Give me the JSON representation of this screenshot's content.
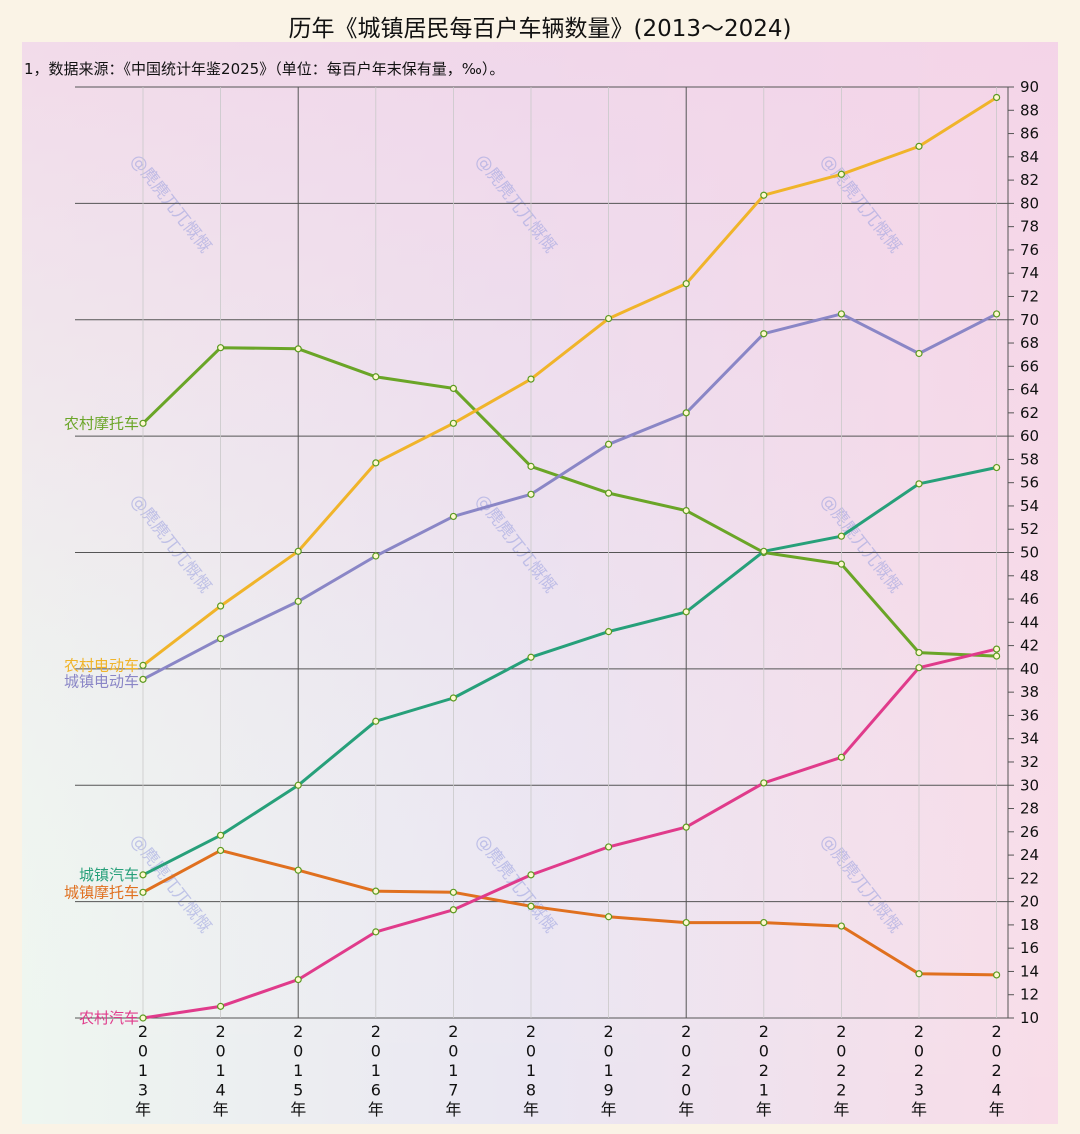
{
  "title": "历年《城镇居民每百户车辆数量》(2013～2024)",
  "subtitle": "1，数据来源：《中国统计年鉴2025》（单位：每百户年末保有量，‰）。",
  "watermark": "@麂麂兀兀慨慨",
  "chart_data": {
    "type": "line",
    "x": [
      "2013年",
      "2014年",
      "2015年",
      "2016年",
      "2017年",
      "2018年",
      "2019年",
      "2020年",
      "2021年",
      "2022年",
      "2023年",
      "2024年"
    ],
    "ylim": [
      10,
      90
    ],
    "yticks": [
      10,
      12,
      14,
      16,
      18,
      20,
      22,
      24,
      26,
      28,
      30,
      32,
      34,
      36,
      38,
      40,
      42,
      44,
      46,
      48,
      50,
      52,
      54,
      56,
      58,
      60,
      62,
      64,
      66,
      68,
      70,
      72,
      74,
      76,
      78,
      80,
      82,
      84,
      86,
      88,
      90
    ],
    "y_axis_side": "right",
    "grid": true,
    "series": [
      {
        "name": "农村摩托车",
        "color": "#6aa527",
        "values": [
          61.1,
          67.6,
          67.5,
          65.1,
          64.1,
          57.4,
          55.1,
          53.6,
          50.0,
          49.0,
          41.4,
          41.1
        ]
      },
      {
        "name": "农村电动车",
        "color": "#f0b42a",
        "values": [
          40.3,
          45.4,
          50.1,
          57.7,
          61.1,
          64.9,
          70.1,
          73.1,
          80.7,
          82.5,
          84.9,
          89.1
        ]
      },
      {
        "name": "城镇电动车",
        "color": "#8a86c6",
        "values": [
          39.1,
          42.6,
          45.8,
          49.7,
          53.1,
          55.0,
          59.3,
          62.0,
          68.8,
          70.5,
          67.1,
          70.5
        ]
      },
      {
        "name": "城镇汽车",
        "color": "#27a07a",
        "values": [
          22.3,
          25.7,
          30.0,
          35.5,
          37.5,
          41.0,
          43.2,
          44.9,
          50.1,
          51.4,
          55.9,
          57.3
        ]
      },
      {
        "name": "城镇摩托车",
        "color": "#e0701f",
        "values": [
          20.8,
          24.4,
          22.7,
          20.9,
          20.8,
          19.6,
          18.7,
          18.2,
          18.2,
          17.9,
          13.8,
          13.7
        ]
      },
      {
        "name": "农村汽车",
        "color": "#e03b8b",
        "values": [
          10.0,
          11.0,
          13.3,
          17.4,
          19.3,
          22.3,
          24.7,
          26.4,
          30.2,
          32.4,
          40.1,
          41.7
        ]
      }
    ]
  }
}
